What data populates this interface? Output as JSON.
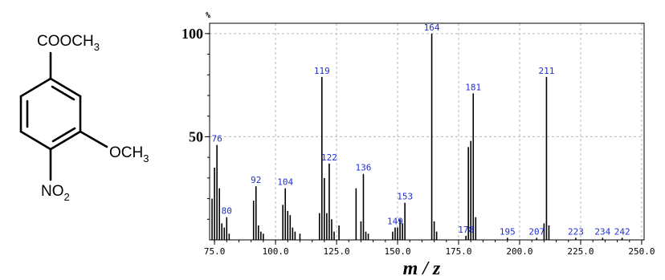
{
  "molecule": {
    "ester_group": [
      "COOCH",
      "3"
    ],
    "methoxy_group": [
      "OCH",
      "3"
    ],
    "nitro_group": [
      "NO",
      "2"
    ]
  },
  "chart_data": {
    "type": "bar",
    "title": "",
    "xlabel": "m / z",
    "ylabel": "",
    "y_unit": "%",
    "xlim": [
      73,
      251
    ],
    "ylim": [
      0,
      105
    ],
    "x_ticks": [
      75,
      100,
      125,
      150,
      175,
      200,
      225,
      250
    ],
    "x_tick_labels": [
      "75.0",
      "100.0",
      "125.0",
      "150.0",
      "175.0",
      "200.0",
      "225.0",
      "250.0"
    ],
    "y_ticks": [
      50,
      100
    ],
    "y_tick_labels": [
      "50",
      "100"
    ],
    "grid": true,
    "peaks": [
      {
        "mz": 74,
        "intensity": 20
      },
      {
        "mz": 75,
        "intensity": 35
      },
      {
        "mz": 76,
        "intensity": 46,
        "label": "76"
      },
      {
        "mz": 77,
        "intensity": 25
      },
      {
        "mz": 78,
        "intensity": 8
      },
      {
        "mz": 79,
        "intensity": 6
      },
      {
        "mz": 80,
        "intensity": 11,
        "label": "80"
      },
      {
        "mz": 81,
        "intensity": 3
      },
      {
        "mz": 91,
        "intensity": 19
      },
      {
        "mz": 92,
        "intensity": 26,
        "label": "92"
      },
      {
        "mz": 93,
        "intensity": 7
      },
      {
        "mz": 94,
        "intensity": 4
      },
      {
        "mz": 95,
        "intensity": 3
      },
      {
        "mz": 103,
        "intensity": 17
      },
      {
        "mz": 104,
        "intensity": 25,
        "label": "104"
      },
      {
        "mz": 105,
        "intensity": 14
      },
      {
        "mz": 106,
        "intensity": 12
      },
      {
        "mz": 107,
        "intensity": 6
      },
      {
        "mz": 108,
        "intensity": 4
      },
      {
        "mz": 110,
        "intensity": 3
      },
      {
        "mz": 118,
        "intensity": 13
      },
      {
        "mz": 119,
        "intensity": 79,
        "label": "119"
      },
      {
        "mz": 120,
        "intensity": 30
      },
      {
        "mz": 121,
        "intensity": 13
      },
      {
        "mz": 122,
        "intensity": 37,
        "label": "122"
      },
      {
        "mz": 123,
        "intensity": 10
      },
      {
        "mz": 124,
        "intensity": 4
      },
      {
        "mz": 126,
        "intensity": 7
      },
      {
        "mz": 133,
        "intensity": 25
      },
      {
        "mz": 135,
        "intensity": 9
      },
      {
        "mz": 136,
        "intensity": 32,
        "label": "136"
      },
      {
        "mz": 137,
        "intensity": 4
      },
      {
        "mz": 138,
        "intensity": 3
      },
      {
        "mz": 148,
        "intensity": 4
      },
      {
        "mz": 149,
        "intensity": 6,
        "label": "149"
      },
      {
        "mz": 150,
        "intensity": 6
      },
      {
        "mz": 151,
        "intensity": 10
      },
      {
        "mz": 152,
        "intensity": 8
      },
      {
        "mz": 153,
        "intensity": 18,
        "label": "153"
      },
      {
        "mz": 164,
        "intensity": 100,
        "label": "164"
      },
      {
        "mz": 165,
        "intensity": 9
      },
      {
        "mz": 166,
        "intensity": 4
      },
      {
        "mz": 178,
        "intensity": 2,
        "label": "178"
      },
      {
        "mz": 179,
        "intensity": 45
      },
      {
        "mz": 180,
        "intensity": 48
      },
      {
        "mz": 181,
        "intensity": 71,
        "label": "181"
      },
      {
        "mz": 182,
        "intensity": 11
      },
      {
        "mz": 195,
        "intensity": 1,
        "label": "195"
      },
      {
        "mz": 207,
        "intensity": 1,
        "label": "207"
      },
      {
        "mz": 210,
        "intensity": 8
      },
      {
        "mz": 211,
        "intensity": 79,
        "label": "211"
      },
      {
        "mz": 212,
        "intensity": 7
      },
      {
        "mz": 223,
        "intensity": 1,
        "label": "223"
      },
      {
        "mz": 234,
        "intensity": 1,
        "label": "234"
      },
      {
        "mz": 242,
        "intensity": 1,
        "label": "242"
      }
    ]
  }
}
